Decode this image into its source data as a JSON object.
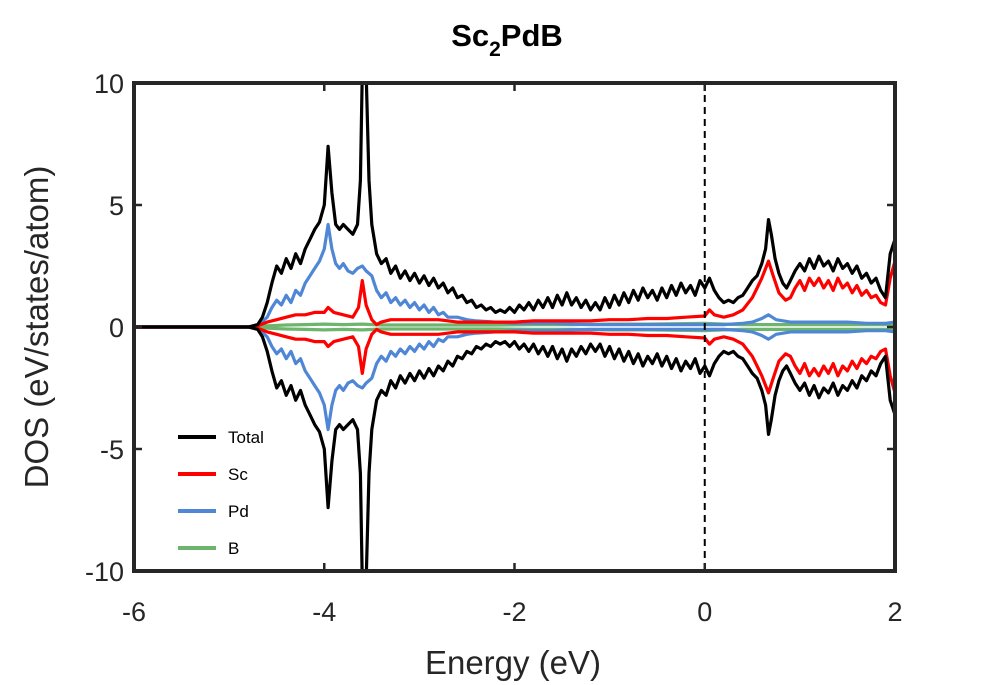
{
  "chart_data": {
    "type": "line",
    "title": {
      "main": "Sc",
      "sub": "2",
      "rest": "PdB"
    },
    "xlabel": "Energy (eV)",
    "ylabel": "DOS (eV/states/atom)",
    "xlim": [
      -6,
      2
    ],
    "ylim": [
      -10,
      10
    ],
    "xticks": [
      -6,
      -4,
      -2,
      0,
      2
    ],
    "xtick_labels": [
      "-6",
      "-4",
      "-2",
      "0",
      "2"
    ],
    "yticks": [
      -10,
      -5,
      0,
      5,
      10
    ],
    "ytick_labels": [
      "-10",
      "-5",
      "0",
      "5",
      "10"
    ],
    "grid": false,
    "legend_position": "bottom-left",
    "fermi_level_line": {
      "x": 0,
      "style": "dashed"
    },
    "mirrored": true,
    "series": [
      {
        "name": "Total",
        "color": "#000000",
        "points": [
          [
            -6,
            0
          ],
          [
            -4.8,
            0
          ],
          [
            -4.7,
            0.1
          ],
          [
            -4.65,
            0.4
          ],
          [
            -4.6,
            1.0
          ],
          [
            -4.55,
            1.8
          ],
          [
            -4.5,
            2.5
          ],
          [
            -4.45,
            2.2
          ],
          [
            -4.4,
            2.8
          ],
          [
            -4.35,
            2.4
          ],
          [
            -4.3,
            3.0
          ],
          [
            -4.25,
            2.6
          ],
          [
            -4.2,
            3.2
          ],
          [
            -4.15,
            3.6
          ],
          [
            -4.1,
            4.0
          ],
          [
            -4.05,
            4.3
          ],
          [
            -4.0,
            5.0
          ],
          [
            -3.96,
            7.4
          ],
          [
            -3.92,
            5.5
          ],
          [
            -3.88,
            4.2
          ],
          [
            -3.84,
            4.0
          ],
          [
            -3.8,
            4.2
          ],
          [
            -3.75,
            4.0
          ],
          [
            -3.7,
            3.8
          ],
          [
            -3.65,
            4.2
          ],
          [
            -3.62,
            6.0
          ],
          [
            -3.6,
            10.5
          ],
          [
            -3.56,
            10.5
          ],
          [
            -3.53,
            6.0
          ],
          [
            -3.5,
            4.2
          ],
          [
            -3.45,
            3.0
          ],
          [
            -3.4,
            2.6
          ],
          [
            -3.35,
            2.8
          ],
          [
            -3.3,
            2.2
          ],
          [
            -3.25,
            2.5
          ],
          [
            -3.2,
            2.0
          ],
          [
            -3.15,
            2.3
          ],
          [
            -3.1,
            1.9
          ],
          [
            -3.05,
            2.2
          ],
          [
            -3.0,
            1.8
          ],
          [
            -2.95,
            2.1
          ],
          [
            -2.9,
            1.7
          ],
          [
            -2.85,
            2.0
          ],
          [
            -2.8,
            1.6
          ],
          [
            -2.75,
            1.8
          ],
          [
            -2.7,
            1.4
          ],
          [
            -2.65,
            1.6
          ],
          [
            -2.6,
            1.2
          ],
          [
            -2.55,
            1.3
          ],
          [
            -2.5,
            1.0
          ],
          [
            -2.45,
            1.1
          ],
          [
            -2.4,
            0.8
          ],
          [
            -2.35,
            0.9
          ],
          [
            -2.3,
            0.7
          ],
          [
            -2.25,
            0.8
          ],
          [
            -2.2,
            0.6
          ],
          [
            -2.15,
            0.7
          ],
          [
            -2.1,
            0.6
          ],
          [
            -2.05,
            0.8
          ],
          [
            -2.0,
            0.6
          ],
          [
            -1.95,
            0.9
          ],
          [
            -1.9,
            0.7
          ],
          [
            -1.85,
            1.0
          ],
          [
            -1.8,
            0.7
          ],
          [
            -1.75,
            1.1
          ],
          [
            -1.7,
            0.8
          ],
          [
            -1.65,
            1.2
          ],
          [
            -1.6,
            0.8
          ],
          [
            -1.55,
            1.3
          ],
          [
            -1.5,
            0.9
          ],
          [
            -1.45,
            1.4
          ],
          [
            -1.4,
            0.9
          ],
          [
            -1.35,
            1.2
          ],
          [
            -1.3,
            0.8
          ],
          [
            -1.25,
            1.1
          ],
          [
            -1.2,
            0.7
          ],
          [
            -1.15,
            1.0
          ],
          [
            -1.1,
            0.7
          ],
          [
            -1.05,
            1.2
          ],
          [
            -1.0,
            0.8
          ],
          [
            -0.95,
            1.3
          ],
          [
            -0.9,
            0.9
          ],
          [
            -0.85,
            1.4
          ],
          [
            -0.8,
            1.0
          ],
          [
            -0.75,
            1.5
          ],
          [
            -0.7,
            1.1
          ],
          [
            -0.65,
            1.6
          ],
          [
            -0.6,
            1.2
          ],
          [
            -0.55,
            1.5
          ],
          [
            -0.5,
            1.1
          ],
          [
            -0.45,
            1.6
          ],
          [
            -0.4,
            1.2
          ],
          [
            -0.35,
            1.7
          ],
          [
            -0.3,
            1.3
          ],
          [
            -0.25,
            1.8
          ],
          [
            -0.2,
            1.4
          ],
          [
            -0.15,
            1.7
          ],
          [
            -0.1,
            1.3
          ],
          [
            -0.05,
            1.9
          ],
          [
            0.0,
            1.6
          ],
          [
            0.05,
            2.0
          ],
          [
            0.1,
            1.5
          ],
          [
            0.15,
            1.2
          ],
          [
            0.2,
            1.0
          ],
          [
            0.25,
            1.1
          ],
          [
            0.3,
            1.0
          ],
          [
            0.35,
            1.2
          ],
          [
            0.4,
            1.3
          ],
          [
            0.45,
            1.6
          ],
          [
            0.5,
            1.9
          ],
          [
            0.55,
            2.1
          ],
          [
            0.6,
            2.6
          ],
          [
            0.64,
            3.2
          ],
          [
            0.67,
            4.4
          ],
          [
            0.7,
            3.8
          ],
          [
            0.74,
            2.8
          ],
          [
            0.78,
            2.2
          ],
          [
            0.82,
            1.8
          ],
          [
            0.86,
            1.6
          ],
          [
            0.9,
            1.9
          ],
          [
            0.95,
            2.3
          ],
          [
            1.0,
            2.6
          ],
          [
            1.05,
            2.3
          ],
          [
            1.1,
            2.8
          ],
          [
            1.15,
            2.4
          ],
          [
            1.2,
            2.9
          ],
          [
            1.25,
            2.5
          ],
          [
            1.3,
            2.7
          ],
          [
            1.35,
            2.3
          ],
          [
            1.4,
            2.8
          ],
          [
            1.45,
            2.4
          ],
          [
            1.5,
            2.6
          ],
          [
            1.55,
            2.2
          ],
          [
            1.6,
            2.5
          ],
          [
            1.65,
            2.0
          ],
          [
            1.7,
            2.2
          ],
          [
            1.75,
            1.8
          ],
          [
            1.8,
            2.0
          ],
          [
            1.85,
            1.5
          ],
          [
            1.9,
            1.2
          ],
          [
            1.95,
            3.0
          ],
          [
            2.0,
            3.6
          ]
        ]
      },
      {
        "name": "Sc",
        "color": "#ff0000",
        "points": [
          [
            -6,
            0
          ],
          [
            -4.8,
            0
          ],
          [
            -4.7,
            0.05
          ],
          [
            -4.6,
            0.2
          ],
          [
            -4.5,
            0.3
          ],
          [
            -4.4,
            0.4
          ],
          [
            -4.3,
            0.5
          ],
          [
            -4.2,
            0.5
          ],
          [
            -4.1,
            0.6
          ],
          [
            -4.0,
            0.6
          ],
          [
            -3.96,
            0.8
          ],
          [
            -3.9,
            0.6
          ],
          [
            -3.8,
            0.5
          ],
          [
            -3.7,
            0.4
          ],
          [
            -3.64,
            0.8
          ],
          [
            -3.6,
            1.9
          ],
          [
            -3.56,
            0.9
          ],
          [
            -3.5,
            0.3
          ],
          [
            -3.45,
            0.1
          ],
          [
            -3.4,
            0.2
          ],
          [
            -3.3,
            0.3
          ],
          [
            -3.2,
            0.3
          ],
          [
            -3.0,
            0.3
          ],
          [
            -2.8,
            0.3
          ],
          [
            -2.6,
            0.2
          ],
          [
            -2.4,
            0.2
          ],
          [
            -2.2,
            0.2
          ],
          [
            -2.0,
            0.2
          ],
          [
            -1.8,
            0.25
          ],
          [
            -1.6,
            0.25
          ],
          [
            -1.4,
            0.25
          ],
          [
            -1.2,
            0.25
          ],
          [
            -1.0,
            0.3
          ],
          [
            -0.8,
            0.3
          ],
          [
            -0.6,
            0.35
          ],
          [
            -0.4,
            0.35
          ],
          [
            -0.2,
            0.4
          ],
          [
            0.0,
            0.45
          ],
          [
            0.05,
            0.7
          ],
          [
            0.1,
            0.5
          ],
          [
            0.2,
            0.4
          ],
          [
            0.3,
            0.5
          ],
          [
            0.4,
            0.7
          ],
          [
            0.5,
            1.2
          ],
          [
            0.55,
            1.6
          ],
          [
            0.6,
            2.0
          ],
          [
            0.67,
            2.7
          ],
          [
            0.72,
            2.1
          ],
          [
            0.78,
            1.4
          ],
          [
            0.85,
            1.1
          ],
          [
            0.9,
            1.2
          ],
          [
            0.95,
            1.6
          ],
          [
            1.0,
            1.9
          ],
          [
            1.05,
            1.5
          ],
          [
            1.1,
            2.0
          ],
          [
            1.15,
            1.7
          ],
          [
            1.2,
            2.0
          ],
          [
            1.25,
            1.6
          ],
          [
            1.3,
            1.9
          ],
          [
            1.35,
            1.5
          ],
          [
            1.4,
            2.0
          ],
          [
            1.45,
            1.6
          ],
          [
            1.5,
            1.8
          ],
          [
            1.55,
            1.4
          ],
          [
            1.6,
            1.7
          ],
          [
            1.65,
            1.3
          ],
          [
            1.7,
            1.5
          ],
          [
            1.75,
            1.2
          ],
          [
            1.8,
            1.3
          ],
          [
            1.85,
            1.0
          ],
          [
            1.9,
            0.9
          ],
          [
            1.95,
            2.0
          ],
          [
            2.0,
            2.7
          ]
        ]
      },
      {
        "name": "Pd",
        "color": "#4f87d6",
        "points": [
          [
            -6,
            0
          ],
          [
            -4.8,
            0
          ],
          [
            -4.7,
            0.05
          ],
          [
            -4.6,
            0.4
          ],
          [
            -4.55,
            0.8
          ],
          [
            -4.5,
            1.1
          ],
          [
            -4.45,
            0.9
          ],
          [
            -4.4,
            1.3
          ],
          [
            -4.35,
            1.0
          ],
          [
            -4.3,
            1.5
          ],
          [
            -4.25,
            1.3
          ],
          [
            -4.2,
            1.8
          ],
          [
            -4.15,
            2.1
          ],
          [
            -4.1,
            2.4
          ],
          [
            -4.05,
            2.7
          ],
          [
            -4.0,
            3.2
          ],
          [
            -3.96,
            4.2
          ],
          [
            -3.92,
            3.2
          ],
          [
            -3.88,
            2.6
          ],
          [
            -3.84,
            2.4
          ],
          [
            -3.8,
            2.6
          ],
          [
            -3.75,
            2.3
          ],
          [
            -3.7,
            2.2
          ],
          [
            -3.65,
            2.4
          ],
          [
            -3.6,
            2.5
          ],
          [
            -3.56,
            2.3
          ],
          [
            -3.5,
            2.1
          ],
          [
            -3.45,
            1.5
          ],
          [
            -3.4,
            1.2
          ],
          [
            -3.35,
            1.4
          ],
          [
            -3.3,
            1.0
          ],
          [
            -3.25,
            1.2
          ],
          [
            -3.2,
            0.9
          ],
          [
            -3.15,
            1.1
          ],
          [
            -3.1,
            0.8
          ],
          [
            -3.05,
            1.0
          ],
          [
            -3.0,
            0.7
          ],
          [
            -2.95,
            0.9
          ],
          [
            -2.9,
            0.6
          ],
          [
            -2.85,
            0.8
          ],
          [
            -2.8,
            0.5
          ],
          [
            -2.75,
            0.6
          ],
          [
            -2.7,
            0.4
          ],
          [
            -2.6,
            0.4
          ],
          [
            -2.5,
            0.3
          ],
          [
            -2.4,
            0.25
          ],
          [
            -2.2,
            0.2
          ],
          [
            -2.0,
            0.15
          ],
          [
            -1.8,
            0.15
          ],
          [
            -1.6,
            0.15
          ],
          [
            -1.4,
            0.12
          ],
          [
            -1.2,
            0.1
          ],
          [
            -1.0,
            0.1
          ],
          [
            -0.8,
            0.1
          ],
          [
            -0.6,
            0.1
          ],
          [
            -0.4,
            0.1
          ],
          [
            -0.2,
            0.1
          ],
          [
            0.0,
            0.1
          ],
          [
            0.2,
            0.1
          ],
          [
            0.4,
            0.15
          ],
          [
            0.5,
            0.2
          ],
          [
            0.6,
            0.35
          ],
          [
            0.67,
            0.5
          ],
          [
            0.75,
            0.3
          ],
          [
            0.9,
            0.2
          ],
          [
            1.1,
            0.2
          ],
          [
            1.3,
            0.2
          ],
          [
            1.5,
            0.2
          ],
          [
            1.7,
            0.15
          ],
          [
            1.9,
            0.15
          ],
          [
            2.0,
            0.2
          ]
        ]
      },
      {
        "name": "B",
        "color": "#6db56d",
        "points": [
          [
            -6,
            0
          ],
          [
            -4.8,
            0
          ],
          [
            -4.6,
            0.05
          ],
          [
            -4.4,
            0.08
          ],
          [
            -4.2,
            0.1
          ],
          [
            -4.0,
            0.12
          ],
          [
            -3.8,
            0.1
          ],
          [
            -3.6,
            0.12
          ],
          [
            -3.4,
            0.08
          ],
          [
            -3.0,
            0.08
          ],
          [
            -2.6,
            0.08
          ],
          [
            -2.2,
            0.08
          ],
          [
            -1.8,
            0.1
          ],
          [
            -1.4,
            0.1
          ],
          [
            -1.0,
            0.12
          ],
          [
            -0.6,
            0.12
          ],
          [
            -0.2,
            0.14
          ],
          [
            0.0,
            0.15
          ],
          [
            0.2,
            0.12
          ],
          [
            0.4,
            0.1
          ],
          [
            0.6,
            0.1
          ],
          [
            0.8,
            0.1
          ],
          [
            1.0,
            0.1
          ],
          [
            1.2,
            0.1
          ],
          [
            1.4,
            0.1
          ],
          [
            1.6,
            0.1
          ],
          [
            1.8,
            0.1
          ],
          [
            2.0,
            0.1
          ]
        ]
      }
    ]
  }
}
